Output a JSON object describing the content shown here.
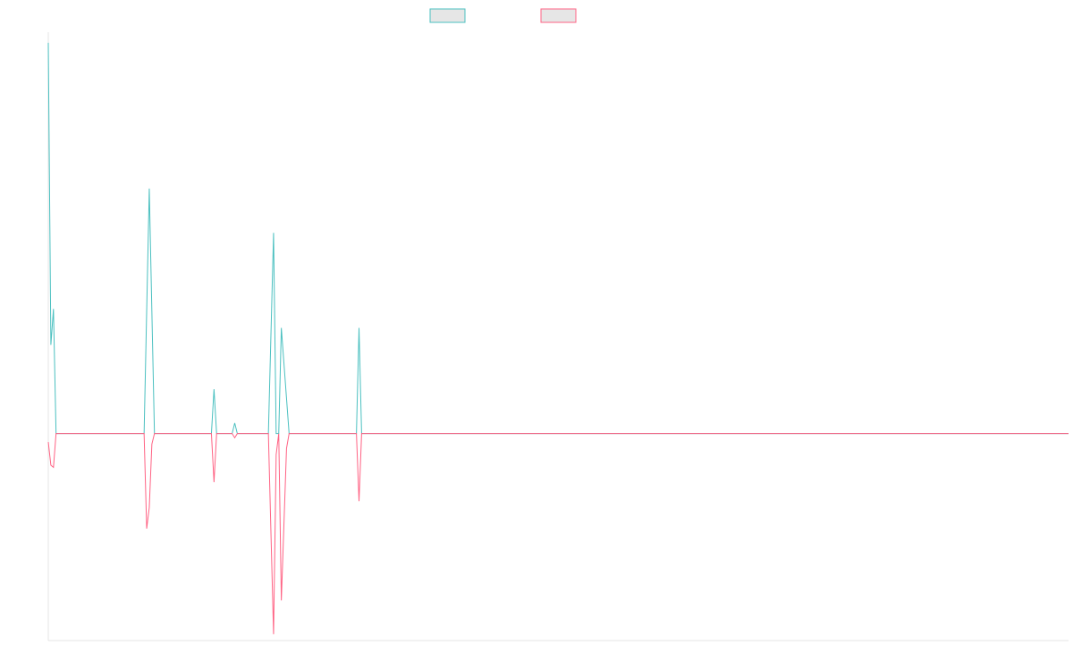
{
  "chart_data": {
    "type": "line",
    "title": "",
    "xlabel": "",
    "ylabel": "",
    "x_range": [
      0,
      197
    ],
    "ylim": [
      -0.98,
      1.9
    ],
    "grid": false,
    "legend": {
      "placement": "top-center"
    },
    "series": [
      {
        "color": "#4bc0c0",
        "fill": "#e6e6e6",
        "points": [
          [
            0,
            1.85
          ],
          [
            0.5,
            0.42
          ],
          [
            1,
            0.59
          ],
          [
            1.5,
            0.0
          ],
          [
            18.5,
            0.0
          ],
          [
            19.5,
            1.16
          ],
          [
            20.5,
            0.0
          ],
          [
            31.5,
            0.0
          ],
          [
            32,
            0.21
          ],
          [
            32.5,
            0.0
          ],
          [
            35.5,
            0.0
          ],
          [
            36,
            0.05
          ],
          [
            36.5,
            0.0
          ],
          [
            42.5,
            0.0
          ],
          [
            43.5,
            0.95
          ],
          [
            44,
            0.0
          ],
          [
            44.5,
            0.0
          ],
          [
            45,
            0.5
          ],
          [
            46.5,
            0.0
          ],
          [
            59.5,
            0.0
          ],
          [
            60,
            0.5
          ],
          [
            60.5,
            0.0
          ],
          [
            197,
            0.0
          ]
        ]
      },
      {
        "color": "#ff6384",
        "fill": "#e6e6e6",
        "points": [
          [
            0,
            -0.04
          ],
          [
            0.5,
            -0.15
          ],
          [
            1,
            -0.16
          ],
          [
            1.5,
            0.0
          ],
          [
            18.5,
            0.0
          ],
          [
            19,
            -0.45
          ],
          [
            19.5,
            -0.35
          ],
          [
            20,
            -0.05
          ],
          [
            20.5,
            0.0
          ],
          [
            31.5,
            0.0
          ],
          [
            32,
            -0.23
          ],
          [
            32.5,
            0.0
          ],
          [
            35.5,
            0.0
          ],
          [
            36,
            -0.02
          ],
          [
            36.5,
            0.0
          ],
          [
            42.5,
            0.0
          ],
          [
            43.5,
            -0.95
          ],
          [
            44,
            -0.1
          ],
          [
            44.5,
            0.0
          ],
          [
            45,
            -0.79
          ],
          [
            46,
            -0.07
          ],
          [
            46.5,
            0.0
          ],
          [
            59.5,
            0.0
          ],
          [
            60,
            -0.32
          ],
          [
            60.5,
            0.0
          ],
          [
            197,
            0.0
          ]
        ]
      }
    ]
  }
}
